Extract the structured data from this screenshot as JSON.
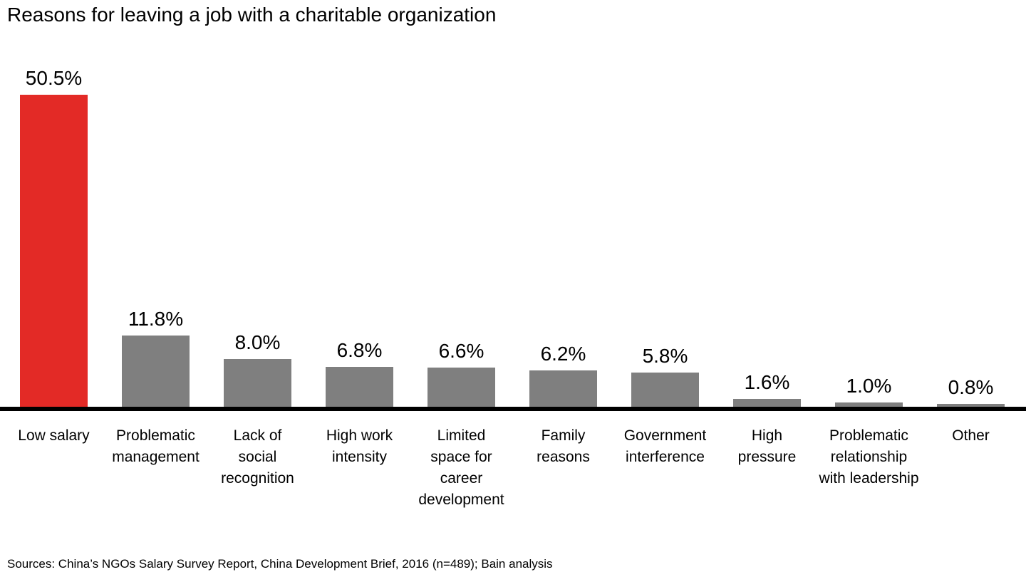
{
  "title": "Reasons for leaving a job with a charitable organization",
  "source_note": "Sources: China’s NGOs Salary Survey Report, China Development Brief, 2016 (n=489); Bain analysis",
  "colors": {
    "highlight_bar": "#e32a26",
    "default_bar": "#7f7f7f",
    "axis": "#000000",
    "text": "#000000",
    "background": "#ffffff"
  },
  "chart_data": {
    "type": "bar",
    "title": "Reasons for leaving a job with a charitable organization",
    "categories": [
      "Low salary",
      "Problematic management",
      "Lack of social recognition",
      "High work intensity",
      "Limited space for career development",
      "Family reasons",
      "Government interference",
      "High pressure",
      "Problematic relationship with leadership",
      "Other"
    ],
    "values": [
      50.5,
      11.8,
      8.0,
      6.8,
      6.6,
      6.2,
      5.8,
      1.6,
      1.0,
      0.8
    ],
    "value_labels": [
      "50.5%",
      "11.8%",
      "8.0%",
      "6.8%",
      "6.6%",
      "6.2%",
      "5.8%",
      "1.6%",
      "1.0%",
      "0.8%"
    ],
    "category_display": [
      "Low salary",
      "Problematic\nmanagement",
      "Lack of\nsocial\nrecognition",
      "High work\nintensity",
      "Limited\nspace for\ncareer\ndevelopment",
      "Family\nreasons",
      "Government\ninterference",
      "High\npressure",
      "Problematic\nrelationship\nwith leadership",
      "Other"
    ],
    "highlight_index": 0,
    "unit": "%",
    "xlabel": "",
    "ylabel": "",
    "ylim": [
      0,
      55
    ],
    "grid": false,
    "legend": null,
    "value_labels_position": "above-bars",
    "source": "Sources: China’s NGOs Salary Survey Report, China Development Brief, 2016 (n=489); Bain analysis"
  }
}
